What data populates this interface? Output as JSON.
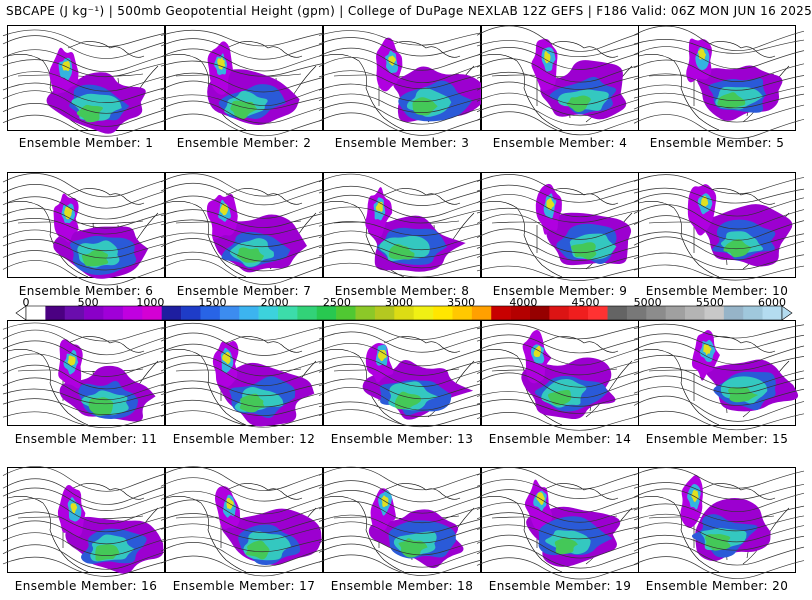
{
  "title": "SBCAPE (J kg⁻¹) | 500mb Geopotential Height (gpm) | College of DuPage NEXLAB 12Z GEFS | F186 Valid: 06Z MON JUN 16 2025",
  "members": [
    {
      "label": "Ensemble Member: 1"
    },
    {
      "label": "Ensemble Member: 2"
    },
    {
      "label": "Ensemble Member: 3"
    },
    {
      "label": "Ensemble Member: 4"
    },
    {
      "label": "Ensemble Member: 5"
    },
    {
      "label": "Ensemble Member: 6"
    },
    {
      "label": "Ensemble Member: 7"
    },
    {
      "label": "Ensemble Member: 8"
    },
    {
      "label": "Ensemble Member: 9"
    },
    {
      "label": "Ensemble Member: 10"
    },
    {
      "label": "Ensemble Member: 11"
    },
    {
      "label": "Ensemble Member: 12"
    },
    {
      "label": "Ensemble Member: 13"
    },
    {
      "label": "Ensemble Member: 14"
    },
    {
      "label": "Ensemble Member: 15"
    },
    {
      "label": "Ensemble Member: 16"
    },
    {
      "label": "Ensemble Member: 17"
    },
    {
      "label": "Ensemble Member: 18"
    },
    {
      "label": "Ensemble Member: 19"
    },
    {
      "label": "Ensemble Member: 20"
    }
  ],
  "colorbar": {
    "ticks": [
      "0",
      "500",
      "1000",
      "1500",
      "2000",
      "2500",
      "3000",
      "3500",
      "4000",
      "4500",
      "5000",
      "5500",
      "6000"
    ],
    "colors": [
      "#ffffff",
      "#4b0082",
      "#6a0dad",
      "#8a00c8",
      "#a000d8",
      "#c000e0",
      "#d400d4",
      "#1e1ea0",
      "#1e3cc8",
      "#2864e6",
      "#3c8cf0",
      "#3cb4f0",
      "#3cd2dc",
      "#3cdcaa",
      "#32d278",
      "#28c850",
      "#50c832",
      "#8cc828",
      "#b4c820",
      "#dcdc14",
      "#f0f014",
      "#ffe600",
      "#ffc800",
      "#ffa000",
      "#c80000",
      "#b40000",
      "#960000",
      "#dc1414",
      "#f01e1e",
      "#ff3232",
      "#646464",
      "#787878",
      "#8c8c8c",
      "#a0a0a0",
      "#b4b4b4",
      "#c8c8c8",
      "#96b4c8",
      "#a0c8dc",
      "#b4dcf0"
    ]
  }
}
